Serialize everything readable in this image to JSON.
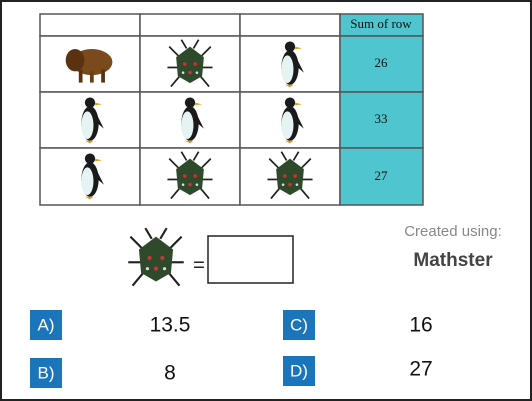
{
  "table": {
    "sum_header": "Sum of row",
    "row_sums": [
      26,
      33,
      27
    ]
  },
  "equation": {
    "sign": "="
  },
  "credit": {
    "text": "Created using:",
    "logo": "Mathster"
  },
  "options": [
    {
      "label": "A)",
      "value": 13.5
    },
    {
      "label": "B)",
      "value": 8
    },
    {
      "label": "C)",
      "value": 16
    },
    {
      "label": "D)",
      "value": 27
    }
  ]
}
